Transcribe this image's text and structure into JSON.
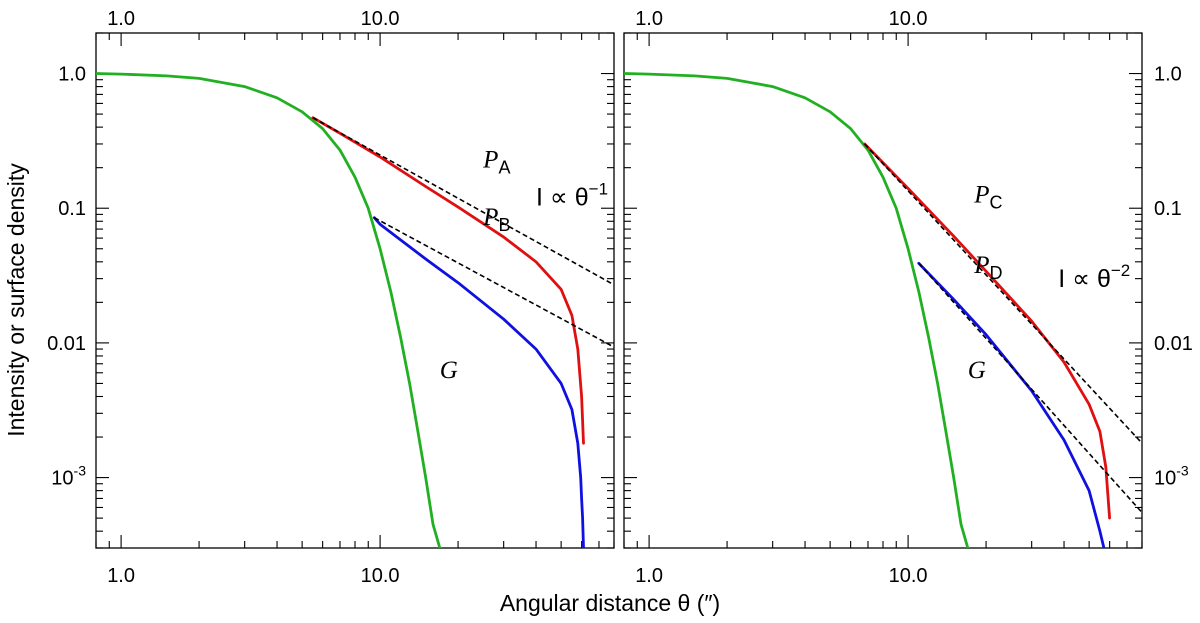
{
  "figure": {
    "ylabel": "Intensity or surface density",
    "xlabel": "Angular distance θ (″)"
  },
  "colors": {
    "G": "#22b022",
    "P_upper": "#e01010",
    "P_lower": "#1010e0",
    "reference": "#000000"
  },
  "chart_data": [
    {
      "type": "line",
      "panel": "left",
      "xscale": "log",
      "yscale": "log",
      "xlim": [
        0.8,
        80
      ],
      "ylim": [
        0.0003,
        2.0
      ],
      "x_ticklabels": [
        "1.0",
        "10.0"
      ],
      "x_ticklabels_top": [
        "1.0",
        "10.0"
      ],
      "y_ticklabels": [
        "1.0",
        "0.1",
        "0.01",
        "10-3"
      ],
      "y_tick_values": [
        1.0,
        0.1,
        0.01,
        0.001
      ],
      "y_ticklabels_side": "left",
      "grid": false,
      "series": [
        {
          "name": "G",
          "color": "#22b022",
          "x": [
            0.8,
            1.0,
            1.5,
            2.0,
            3.0,
            4.0,
            5.0,
            6.0,
            7.0,
            8.0,
            9.0,
            10.0,
            11.0,
            12.0,
            13.0,
            14.0,
            15.0,
            16.0,
            17.0
          ],
          "y": [
            1.0,
            0.99,
            0.96,
            0.92,
            0.8,
            0.66,
            0.52,
            0.39,
            0.27,
            0.17,
            0.1,
            0.05,
            0.024,
            0.011,
            0.005,
            0.0022,
            0.001,
            0.00045,
            0.0003
          ]
        },
        {
          "name": "P",
          "sub": "A",
          "color": "#e01010",
          "x": [
            5.5,
            7,
            10,
            15,
            20,
            30,
            40,
            50,
            55,
            58,
            60,
            61
          ],
          "y": [
            0.47,
            0.36,
            0.24,
            0.145,
            0.102,
            0.061,
            0.04,
            0.025,
            0.016,
            0.009,
            0.004,
            0.0018
          ]
        },
        {
          "name": "P",
          "sub": "B",
          "color": "#1010e0",
          "x": [
            9.5,
            10,
            15,
            20,
            30,
            40,
            50,
            55,
            58,
            59.5,
            60,
            60.5,
            61
          ],
          "y": [
            0.085,
            0.076,
            0.042,
            0.028,
            0.015,
            0.009,
            0.005,
            0.0032,
            0.0018,
            0.001,
            0.0007,
            0.0005,
            0.0003
          ]
        },
        {
          "name": "θ⁻¹ reference",
          "dashed": true,
          "x": [
            5.5,
            80
          ],
          "y": [
            0.47,
            0.027
          ]
        },
        {
          "name": "θ⁻¹ reference",
          "dashed": true,
          "x": [
            9.5,
            80
          ],
          "y": [
            0.085,
            0.0093
          ]
        }
      ],
      "annotations": [
        {
          "text": "P",
          "sub": "A",
          "x": 25,
          "y": 0.2
        },
        {
          "text": "P",
          "sub": "B",
          "x": 25,
          "y": 0.075
        },
        {
          "text": "G",
          "x": 17,
          "y": 0.0055
        }
      ],
      "law_label": {
        "base": "I ∝ θ",
        "exp": "−1",
        "x": 40,
        "y": 0.105
      }
    },
    {
      "type": "line",
      "panel": "right",
      "xscale": "log",
      "yscale": "log",
      "xlim": [
        0.8,
        80
      ],
      "ylim": [
        0.0003,
        2.0
      ],
      "x_ticklabels": [
        "1.0",
        "10.0"
      ],
      "x_ticklabels_top": [
        "1.0",
        "10.0"
      ],
      "y_ticklabels": [
        "1.0",
        "0.1",
        "0.01",
        "10-3"
      ],
      "y_tick_values": [
        1.0,
        0.1,
        0.01,
        0.001
      ],
      "y_ticklabels_side": "right",
      "grid": false,
      "series": [
        {
          "name": "G",
          "color": "#22b022",
          "x": [
            0.8,
            1.0,
            1.5,
            2.0,
            3.0,
            4.0,
            5.0,
            6.0,
            7.0,
            8.0,
            9.0,
            10.0,
            11.0,
            12.0,
            13.0,
            14.0,
            15.0,
            16.0,
            17.0
          ],
          "y": [
            1.0,
            0.99,
            0.96,
            0.92,
            0.8,
            0.66,
            0.52,
            0.39,
            0.27,
            0.17,
            0.1,
            0.05,
            0.024,
            0.011,
            0.005,
            0.0022,
            0.001,
            0.00045,
            0.0003
          ]
        },
        {
          "name": "P",
          "sub": "C",
          "color": "#e01010",
          "x": [
            6.8,
            10,
            15,
            20,
            30,
            40,
            50,
            55,
            58,
            60
          ],
          "y": [
            0.3,
            0.14,
            0.062,
            0.034,
            0.0145,
            0.0072,
            0.0035,
            0.0022,
            0.0012,
            0.0005
          ]
        },
        {
          "name": "P",
          "sub": "D",
          "color": "#1010e0",
          "x": [
            11,
            15,
            20,
            30,
            40,
            50,
            55,
            57
          ],
          "y": [
            0.039,
            0.021,
            0.0115,
            0.0044,
            0.0019,
            0.0008,
            0.0004,
            0.0003
          ]
        },
        {
          "name": "θ⁻² reference",
          "dashed": true,
          "x": [
            6.8,
            80
          ],
          "y": [
            0.3,
            0.0018
          ]
        },
        {
          "name": "θ⁻² reference",
          "dashed": true,
          "x": [
            11,
            80
          ],
          "y": [
            0.039,
            0.00055
          ]
        }
      ],
      "annotations": [
        {
          "text": "P",
          "sub": "C",
          "x": 18,
          "y": 0.11
        },
        {
          "text": "P",
          "sub": "D",
          "x": 18,
          "y": 0.033
        },
        {
          "text": "G",
          "x": 17,
          "y": 0.0055
        }
      ],
      "law_label": {
        "base": "I ∝ θ",
        "exp": "−2",
        "x": 38,
        "y": 0.026
      }
    }
  ]
}
